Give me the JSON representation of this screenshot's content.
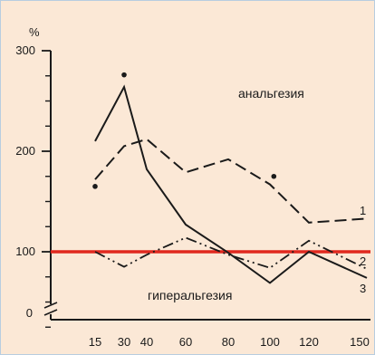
{
  "chart_data": {
    "type": "line",
    "ylabel": "%",
    "x": [
      15,
      30,
      40,
      60,
      80,
      100,
      120,
      150
    ],
    "y_ticks": [
      0,
      100,
      200,
      300
    ],
    "ylim": [
      0,
      300
    ],
    "grid": false,
    "series": [
      {
        "name": "1",
        "style": "dashed",
        "color": "#1a1a1a",
        "values": [
          172,
          205,
          212,
          179,
          192,
          167,
          129,
          133
        ]
      },
      {
        "name": "2",
        "style": "dash-dot",
        "color": "#1a1a1a",
        "values": [
          100,
          85,
          97,
          114,
          97,
          84,
          111,
          83
        ]
      },
      {
        "name": "3",
        "style": "solid",
        "color": "#1a1a1a",
        "values": [
          210,
          264,
          182,
          127,
          99,
          69,
          100,
          74
        ]
      }
    ],
    "points": [
      {
        "x": 15,
        "y": 165
      },
      {
        "x": 30,
        "y": 276
      },
      {
        "x": 102,
        "y": 175
      }
    ],
    "reference_line": {
      "y": 100,
      "color": "#e0281e"
    },
    "annotations": {
      "above": "анальгезия",
      "below": "гиперальгезия"
    }
  }
}
